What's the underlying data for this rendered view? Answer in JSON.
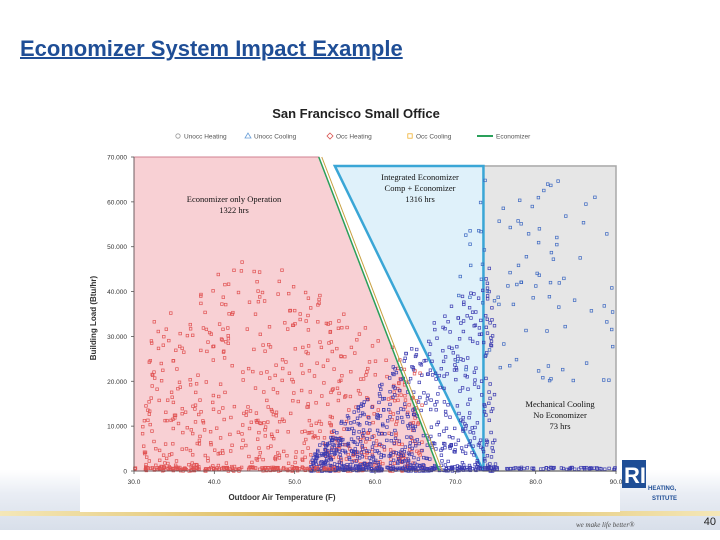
{
  "slide": {
    "title": "Economizer System Impact Example",
    "page_number": "40",
    "slogan": "we make life better®",
    "logo_lines": [
      "HEATING,",
      "STITUTE"
    ],
    "logo_letters": "RI"
  },
  "chart_data": {
    "type": "scatter",
    "title": "San Francisco Small Office",
    "xlabel": "Outdoor Air Temperature (F)",
    "ylabel": "Building Load (Btu/hr)",
    "xlim": [
      30,
      90
    ],
    "ylim": [
      0,
      70000
    ],
    "xticks": [
      "30.0",
      "40.0",
      "50.0",
      "60.0",
      "70.0",
      "80.0",
      "90.0"
    ],
    "yticks": [
      "0",
      "10.000",
      "20.000",
      "30.000",
      "40.000",
      "50.000",
      "60.000",
      "70.000"
    ],
    "grid": false,
    "legend_position": "top",
    "legend": [
      {
        "label": "Unocc Heating",
        "marker": "circle",
        "color": "#999999"
      },
      {
        "label": "Unocc Cooling",
        "marker": "triangle",
        "color": "#6a9fd8"
      },
      {
        "label": "Occ Heating",
        "marker": "diamond",
        "color": "#d9534f"
      },
      {
        "label": "Occ Cooling",
        "marker": "square",
        "color": "#f0b030"
      },
      {
        "label": "Economizer",
        "marker": "line",
        "color": "#2aa05a"
      }
    ],
    "regions": [
      {
        "name": "Economizer only Operation",
        "hours": "1322 hrs",
        "color": "#f8d0d4"
      },
      {
        "name": "Integrated Economizer Comp + Economizer",
        "hours": "1316 hrs",
        "color": "#dff1fa"
      },
      {
        "name": "Mechanical Cooling No Economizer",
        "hours": "73 hrs",
        "color": "#e6e6e6"
      }
    ],
    "annotations": [
      {
        "id": "econ-only",
        "lines": [
          "Economizer only Operation",
          "1322 hrs"
        ]
      },
      {
        "id": "integrated",
        "lines": [
          "Integrated Economizer",
          "Comp + Economizer",
          "1316 hrs"
        ]
      },
      {
        "id": "mechanical",
        "lines": [
          "Mechanical Cooling",
          "No Economizer",
          "73 hrs"
        ]
      }
    ],
    "economizer_boundary": [
      [
        53,
        70000
      ],
      [
        68,
        0
      ]
    ],
    "integrated_boundary": [
      [
        55,
        68000
      ],
      [
        73.5,
        0
      ],
      [
        73.5,
        68000
      ]
    ],
    "series": [
      {
        "name": "Occ Heating",
        "color": "#e05050",
        "x_range": [
          31,
          66
        ],
        "y_range": [
          0,
          50000
        ],
        "count": 700
      },
      {
        "name": "Occ Cooling",
        "color": "#3a3ab0",
        "x_range": [
          52,
          75
        ],
        "y_range": [
          0,
          45000
        ],
        "count": 700
      },
      {
        "name": "Unocc Cooling",
        "color": "#3a66c0",
        "x_range": [
          70,
          90
        ],
        "y_range": [
          20000,
          65000
        ],
        "count": 90
      }
    ]
  }
}
